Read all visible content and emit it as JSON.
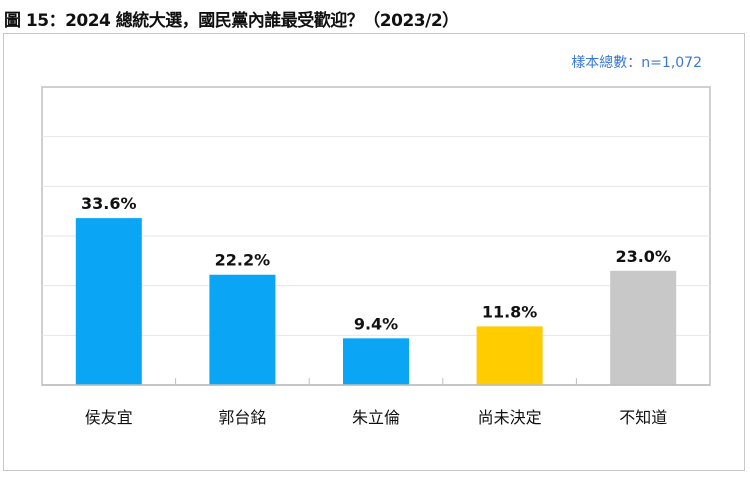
{
  "title": "圖 15：2024 總統大選，國民黨內誰最受歡迎？（2023/2）",
  "sample_note": "樣本總數：n=1,072",
  "chart_data": {
    "type": "bar",
    "title": "圖 15：2024 總統大選，國民黨內誰最受歡迎？（2023/2）",
    "categories": [
      "侯友宜",
      "郭台銘",
      "朱立倫",
      "尚未決定",
      "不知道"
    ],
    "values": [
      33.6,
      22.2,
      9.4,
      11.8,
      23.0
    ],
    "data_labels": [
      "33.6%",
      "22.2%",
      "9.4%",
      "11.8%",
      "23.0%"
    ],
    "colors": [
      "#0aa5f5",
      "#0aa5f5",
      "#0aa5f5",
      "#ffcc00",
      "#c8c8c8"
    ],
    "xlabel": "",
    "ylabel": "",
    "ylim": [
      0,
      60
    ],
    "grid": true,
    "y_ticks_shown": false,
    "legend": "none"
  }
}
